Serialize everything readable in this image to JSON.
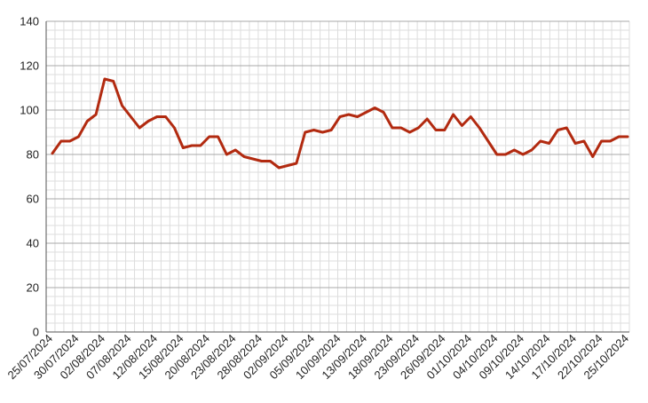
{
  "chart_data": {
    "type": "line",
    "title": "",
    "xlabel": "",
    "ylabel": "",
    "ylim": [
      0,
      140
    ],
    "yticks": [
      0,
      20,
      40,
      60,
      80,
      100,
      120,
      140
    ],
    "grid": true,
    "legend": "none",
    "x_tick_labels": [
      "25/07/2024",
      "30/07/2024",
      "02/08/2024",
      "07/08/2024",
      "12/08/2024",
      "15/08/2024",
      "20/08/2024",
      "23/08/2024",
      "28/08/2024",
      "02/09/2024",
      "05/09/2024",
      "10/09/2024",
      "13/09/2024",
      "18/09/2024",
      "23/09/2024",
      "26/09/2024",
      "01/10/2024",
      "04/10/2024",
      "09/10/2024",
      "14/10/2024",
      "17/10/2024",
      "22/10/2024",
      "25/10/2024"
    ],
    "series": [
      {
        "name": "",
        "color": "#b22a10",
        "values": [
          80.5,
          86,
          86,
          88,
          95,
          98,
          114,
          113,
          102,
          97,
          92,
          95,
          97,
          97,
          92,
          83,
          84,
          84,
          88,
          88,
          80,
          82,
          79,
          78,
          77,
          77,
          74,
          75,
          76,
          90,
          91,
          90,
          91,
          97,
          98,
          97,
          99,
          101,
          99,
          92,
          92,
          90,
          92,
          96,
          91,
          91,
          98,
          93,
          97,
          92,
          86,
          80,
          80,
          82,
          80,
          82,
          86,
          85,
          91,
          92,
          85,
          86,
          79,
          86,
          86,
          88,
          88
        ]
      }
    ]
  }
}
